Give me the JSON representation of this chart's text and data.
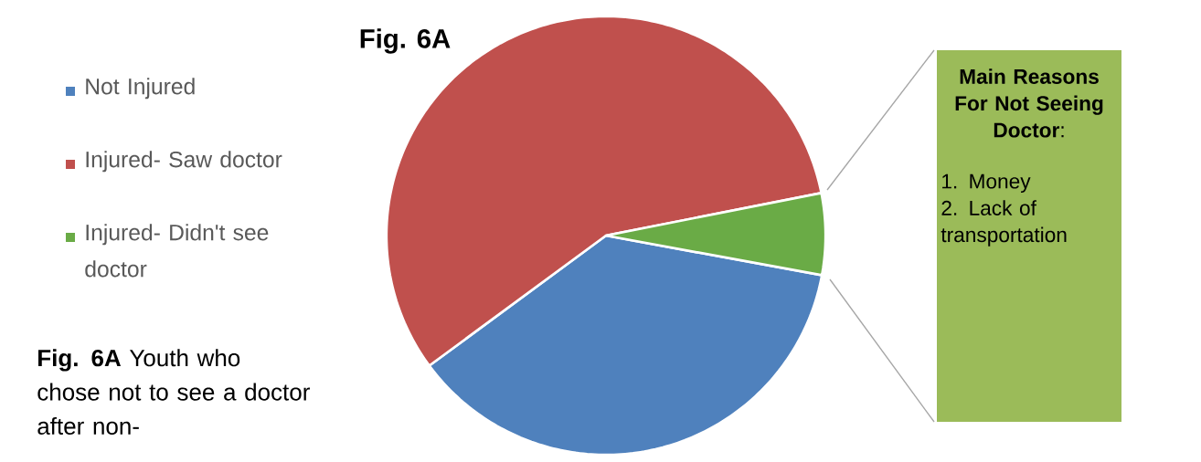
{
  "chart_data": {
    "type": "pie",
    "title": "Fig. 6A",
    "categories": [
      "Not Injured",
      "Injured- Saw doctor",
      "Injured- Didn't see doctor"
    ],
    "values": [
      37,
      57,
      6
    ],
    "colors": [
      "#4f81bd",
      "#c0504d",
      "#6aab46"
    ],
    "legend": "left",
    "annotations": [
      "**Fig. 6A** Youth who chose not to see a doctor after non-",
      "**Main Reasons For Not Seeing Doctor**:",
      "1. Money",
      "2. Lack of transportation"
    ]
  }
}
